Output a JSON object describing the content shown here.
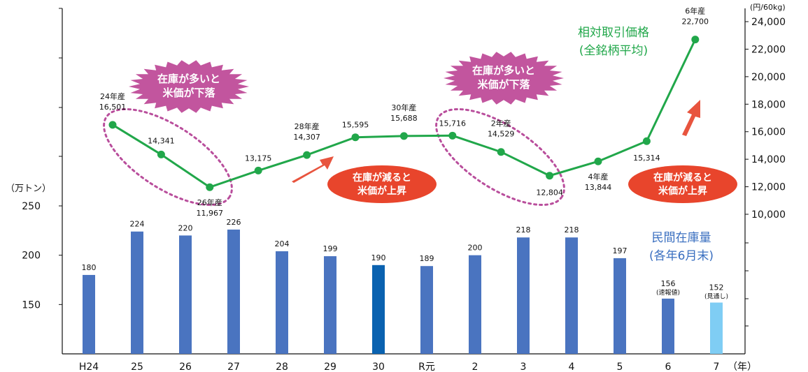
{
  "chart_data": [
    {
      "type": "bar",
      "title": "民間在庫量",
      "subtitle": "(各年6月末)",
      "ylabel": "（万トン）",
      "ylim": [
        100,
        290
      ],
      "yticks": [
        "250",
        "200",
        "150"
      ],
      "categories": [
        "H24",
        "25",
        "26",
        "27",
        "28",
        "29",
        "30",
        "R元",
        "2",
        "3",
        "4",
        "5",
        "6",
        "7"
      ],
      "xunit": "（年）",
      "values": [
        180,
        224,
        220,
        226,
        204,
        199,
        190,
        189,
        200,
        218,
        218,
        197,
        156,
        152
      ],
      "value_labels": [
        "180",
        "224",
        "220",
        "226",
        "204",
        "199",
        "190",
        "189",
        "200",
        "218",
        "218",
        "197",
        "156",
        "152"
      ],
      "bar_notes": {
        "12": "(速報値)",
        "13": "(見通し)"
      },
      "colors": {
        "default": "#4a74c0",
        "highlight": "#0a62b0",
        "forecast": "#7fcdf4"
      },
      "highlight_index": 6,
      "forecast_index": 13
    },
    {
      "type": "line",
      "title": "相対取引価格",
      "subtitle": "(全銘柄平均)",
      "y2label": "(円/60kg)",
      "ylim": [
        10000,
        24000
      ],
      "yticks": [
        "24,000",
        "22,000",
        "20,000",
        "18,000",
        "16,000",
        "14,000",
        "12,000",
        "10,000"
      ],
      "values": [
        16501,
        14341,
        11967,
        13175,
        14307,
        15595,
        15688,
        15716,
        14529,
        12804,
        13844,
        15314,
        22700
      ],
      "point_labels": [
        "24年産\n16,501",
        "14,341",
        "26年産\n11,967",
        "13,175",
        "28年産\n14,307",
        "15,595",
        "30年産\n15,688",
        "15,716",
        "2年産\n14,529",
        "12,804",
        "4年産\n13,844",
        "15,314",
        "6年産\n22,700"
      ],
      "color": "#21a74a"
    }
  ],
  "callouts": {
    "burst1": [
      "在庫が多いと",
      "米価が下落"
    ],
    "burst2": [
      "在庫が多いと",
      "米価が下落"
    ],
    "oval1": [
      "在庫が減ると",
      "米価が上昇"
    ],
    "oval2": [
      "在庫が減ると",
      "米価が上昇"
    ]
  },
  "colors": {
    "burst": "#c2559e",
    "oval": "#e8452c",
    "arrow": "#e8543e",
    "dashed": "#b94e9c",
    "bar_legend": "#3a6fc0",
    "line_legend": "#21a74a"
  }
}
